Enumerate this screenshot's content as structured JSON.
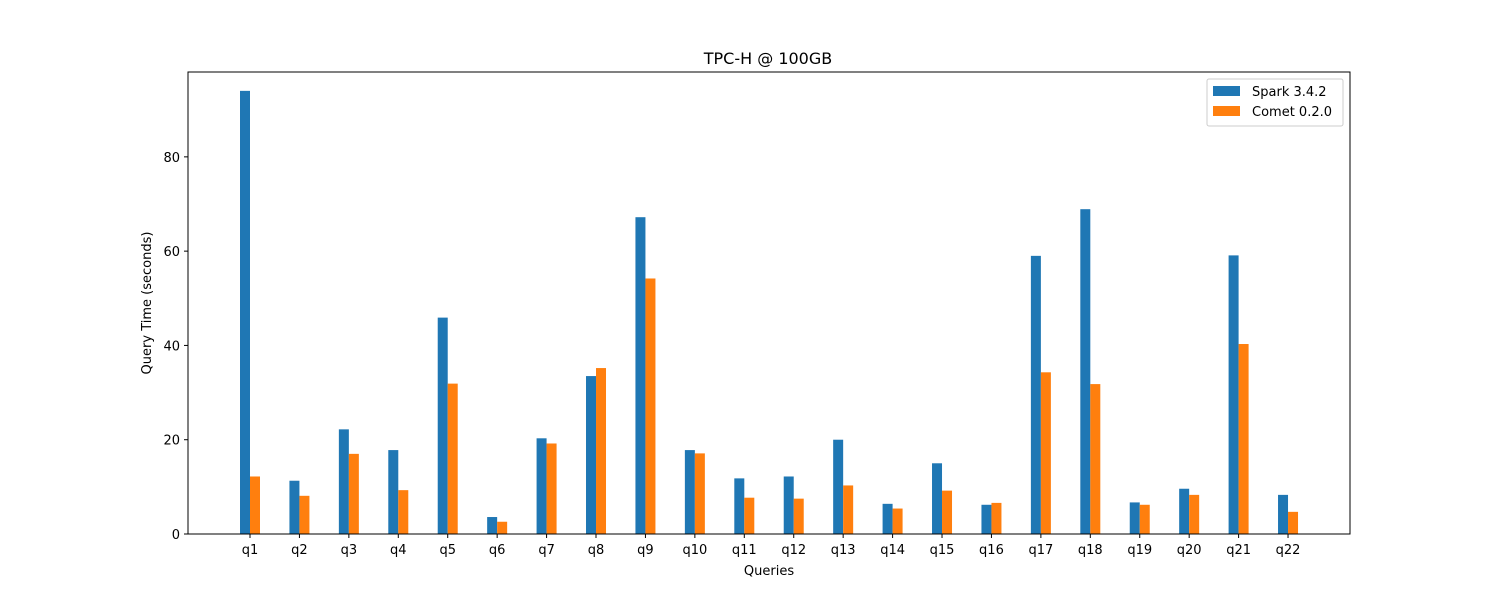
{
  "chart_data": {
    "type": "bar",
    "title": "TPC-H @ 100GB",
    "xlabel": "Queries",
    "ylabel": "Query Time (seconds)",
    "ylim": [
      0,
      98
    ],
    "yticks": [
      0,
      20,
      40,
      60,
      80
    ],
    "grid": false,
    "legend_position": "top-right",
    "categories": [
      "q1",
      "q2",
      "q3",
      "q4",
      "q5",
      "q6",
      "q7",
      "q8",
      "q9",
      "q10",
      "q11",
      "q12",
      "q13",
      "q14",
      "q15",
      "q16",
      "q17",
      "q18",
      "q19",
      "q20",
      "q21",
      "q22"
    ],
    "series": [
      {
        "name": "Spark 3.4.2",
        "color": "#1f77b4",
        "values": [
          94.0,
          11.3,
          22.2,
          17.8,
          45.9,
          3.6,
          20.3,
          33.5,
          67.2,
          17.8,
          11.8,
          12.2,
          20.0,
          6.4,
          15.0,
          6.2,
          59.0,
          68.9,
          6.7,
          9.6,
          59.1,
          8.3
        ]
      },
      {
        "name": "Comet 0.2.0",
        "color": "#ff7f0e",
        "values": [
          12.2,
          8.1,
          17.0,
          9.3,
          31.9,
          2.6,
          19.2,
          35.2,
          54.2,
          17.1,
          7.7,
          7.5,
          10.3,
          5.4,
          9.2,
          6.6,
          34.3,
          31.8,
          6.2,
          8.3,
          40.3,
          4.7
        ]
      }
    ]
  }
}
